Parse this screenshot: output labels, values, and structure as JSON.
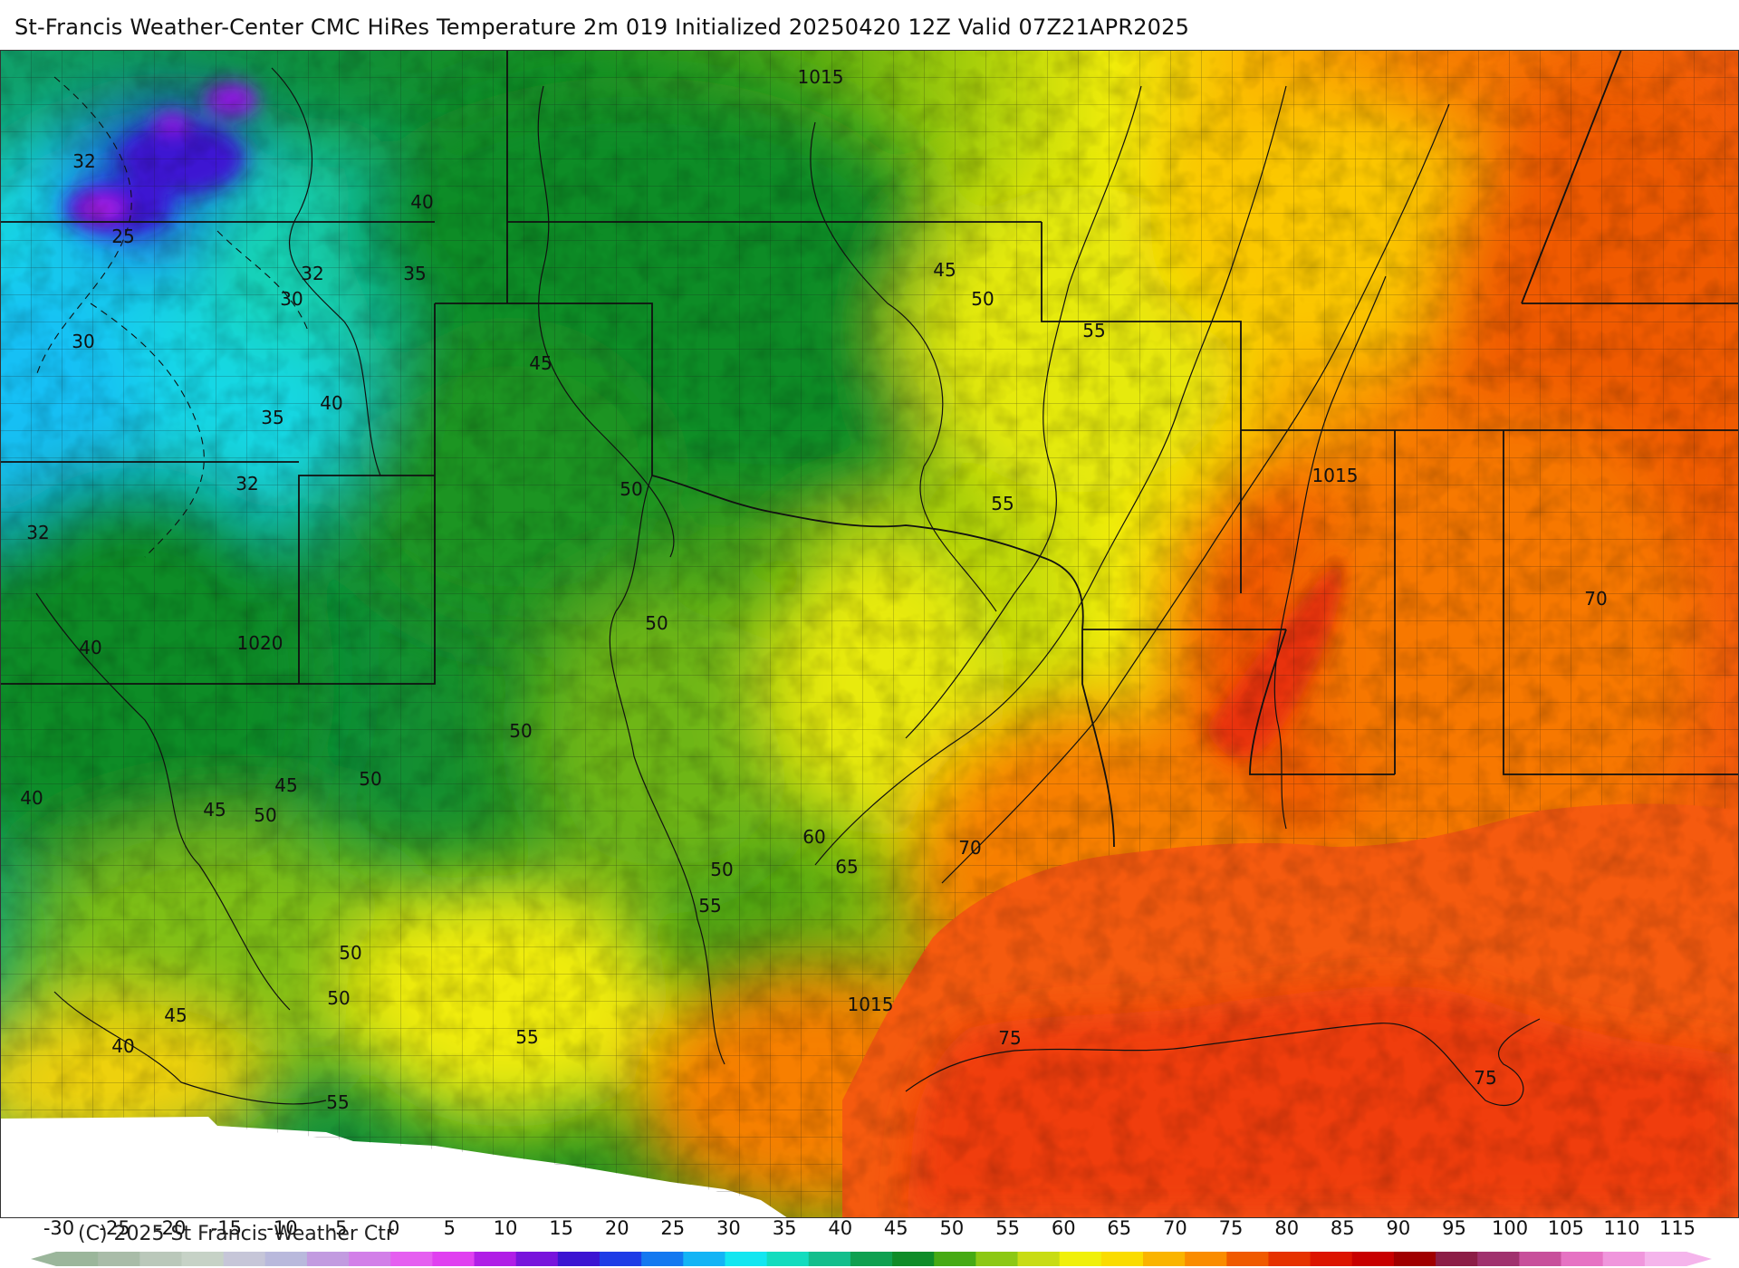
{
  "header": {
    "title": "St-Francis Weather-Center CMC HiRes Temperature 2m  019 Initialized 20250420 12Z Valid 07Z21APR2025"
  },
  "map_labels": {
    "temperature": [
      {
        "text": "32"
      },
      {
        "text": "25"
      },
      {
        "text": "40"
      },
      {
        "text": "32"
      },
      {
        "text": "35"
      },
      {
        "text": "30"
      },
      {
        "text": "30"
      },
      {
        "text": "35"
      },
      {
        "text": "40"
      },
      {
        "text": "45"
      },
      {
        "text": "32"
      },
      {
        "text": "32"
      },
      {
        "text": "50"
      },
      {
        "text": "45"
      },
      {
        "text": "50"
      },
      {
        "text": "55"
      },
      {
        "text": "55"
      },
      {
        "text": "50"
      },
      {
        "text": "40"
      },
      {
        "text": "50"
      },
      {
        "text": "40"
      },
      {
        "text": "45"
      },
      {
        "text": "45"
      },
      {
        "text": "50"
      },
      {
        "text": "50"
      },
      {
        "text": "60"
      },
      {
        "text": "65"
      },
      {
        "text": "70"
      },
      {
        "text": "50"
      },
      {
        "text": "55"
      },
      {
        "text": "50"
      },
      {
        "text": "50"
      },
      {
        "text": "45"
      },
      {
        "text": "40"
      },
      {
        "text": "55"
      },
      {
        "text": "55"
      },
      {
        "text": "75"
      },
      {
        "text": "75"
      },
      {
        "text": "70"
      }
    ],
    "pressure": [
      {
        "text": "1015"
      },
      {
        "text": "1020"
      },
      {
        "text": "1015"
      },
      {
        "text": "1015"
      }
    ]
  },
  "scale": {
    "ticks": [
      "-30",
      "-25",
      "-20",
      "-15",
      "-10",
      "-5",
      "0",
      "5",
      "10",
      "15",
      "20",
      "25",
      "30",
      "35",
      "40",
      "45",
      "50",
      "55",
      "60",
      "65",
      "70",
      "75",
      "80",
      "85",
      "90",
      "95",
      "100",
      "105",
      "110",
      "115"
    ],
    "colors": [
      "#9bb69b",
      "#a9bca8",
      "#bac8ba",
      "#c6d2c6",
      "#c6c6d8",
      "#b9b9dc",
      "#c29be0",
      "#d27fe8",
      "#e55ff0",
      "#e040f0",
      "#b01ee6",
      "#7814dc",
      "#3c14d2",
      "#1e3ce6",
      "#1478f0",
      "#14b4f5",
      "#14e6f0",
      "#14dcbe",
      "#14be8c",
      "#0fa050",
      "#0f8c28",
      "#46aa14",
      "#8cc814",
      "#c8dc14",
      "#f0f00a",
      "#fadc00",
      "#fab400",
      "#fa8c00",
      "#f05a00",
      "#e63200",
      "#dc1400",
      "#c80000",
      "#a00000",
      "#8c1e46",
      "#a0326e",
      "#c8509b",
      "#e673c3",
      "#f096dc",
      "#f5b4eb"
    ]
  },
  "footer": {
    "copyright": "(C) 2025 St Francis Weather Ctr"
  }
}
